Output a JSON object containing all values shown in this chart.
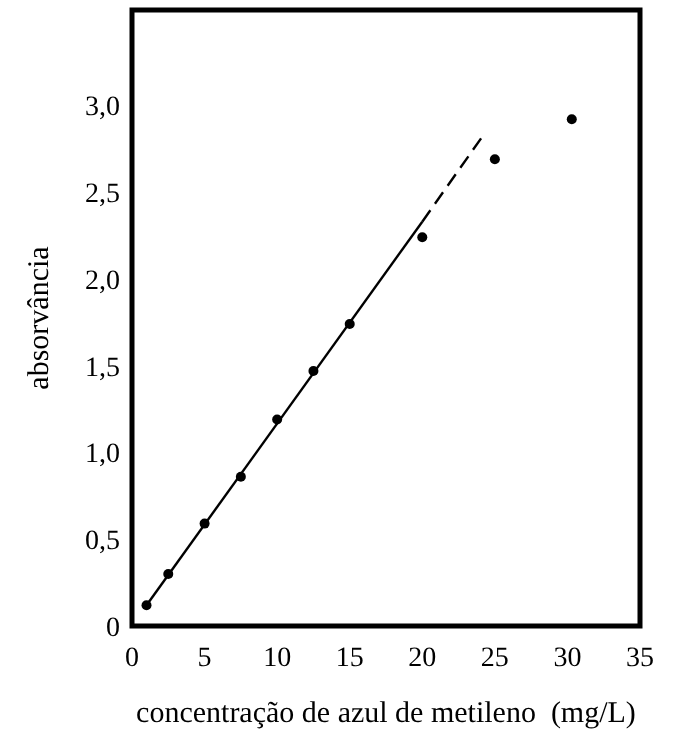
{
  "chart_data": {
    "type": "scatter",
    "xlabel": "concentração de azul de metileno  (mg/L)",
    "ylabel": "absorvância",
    "xlim": [
      0,
      35
    ],
    "ylim": [
      0,
      3.55
    ],
    "xticks": [
      0,
      5,
      10,
      15,
      20,
      25,
      30,
      35
    ],
    "yticks": [
      0,
      {
        "value": 0.5,
        "label": "0,5"
      },
      {
        "value": 1.0,
        "label": "1,0"
      },
      {
        "value": 1.5,
        "label": "1,5"
      },
      {
        "value": 2.0,
        "label": "2,0"
      },
      {
        "value": 2.5,
        "label": "2,5"
      },
      {
        "value": 3.0,
        "label": "3,0"
      }
    ],
    "series": [
      {
        "marker": "circle",
        "color": "#000000",
        "x": [
          1,
          2.5,
          5,
          7.5,
          10,
          12.5,
          15,
          20,
          25,
          30.3
        ],
        "values": [
          0.12,
          0.3,
          0.59,
          0.86,
          1.19,
          1.47,
          1.74,
          2.24,
          2.69,
          2.92
        ]
      },
      {
        "type": "line",
        "color": "#000000",
        "line_style": "solid",
        "x": [
          1,
          20
        ],
        "values": [
          0.12,
          2.33
        ]
      },
      {
        "type": "line",
        "color": "#000000",
        "line_style": "dashed",
        "x": [
          20,
          24.3
        ],
        "values": [
          2.33,
          2.84
        ]
      }
    ]
  }
}
